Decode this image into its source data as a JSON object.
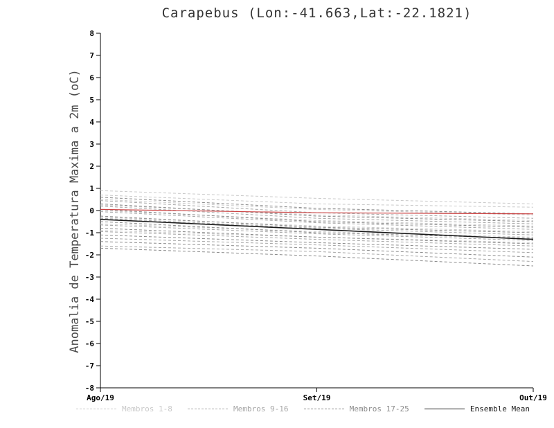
{
  "chart_data": {
    "type": "line",
    "title": "Carapebus (Lon:-41.663,Lat:-22.1821)",
    "ylabel": "Anomalia de Temperatura Maxima a 2m (oC)",
    "xlabel": "",
    "ylim": [
      -8,
      8
    ],
    "yticks": [
      -8,
      -7,
      -6,
      -5,
      -4,
      -3,
      -2,
      -1,
      0,
      1,
      2,
      3,
      4,
      5,
      6,
      7,
      8
    ],
    "x": [
      "Ago/19",
      "Set/19",
      "Out/19"
    ],
    "grid": false,
    "legend_position": "bottom",
    "axis_color": "#000000",
    "groups": [
      {
        "name": "Membros 1-8",
        "color": "#c9c9c9",
        "style": "dashed",
        "members": [
          [
            0.9,
            0.55,
            0.3
          ],
          [
            0.7,
            0.3,
            0.15
          ],
          [
            0.5,
            0.05,
            -0.2
          ],
          [
            0.25,
            -0.2,
            -0.45
          ],
          [
            0.0,
            -0.45,
            -0.7
          ],
          [
            -0.3,
            -0.7,
            -0.95
          ],
          [
            -0.6,
            -0.95,
            -1.2
          ],
          [
            -0.9,
            -1.2,
            -1.45
          ]
        ]
      },
      {
        "name": "Membros 9-16",
        "color": "#a6a6a6",
        "style": "dashed",
        "members": [
          [
            0.45,
            -0.1,
            -0.35
          ],
          [
            0.2,
            -0.35,
            -0.6
          ],
          [
            -0.05,
            -0.55,
            -0.85
          ],
          [
            -0.35,
            -0.8,
            -1.1
          ],
          [
            -0.65,
            -1.05,
            -1.35
          ],
          [
            -0.95,
            -1.3,
            -1.6
          ],
          [
            -1.25,
            -1.55,
            -1.9
          ],
          [
            -1.6,
            -1.85,
            -2.3
          ]
        ]
      },
      {
        "name": "Membros 17-25",
        "color": "#8a8a8a",
        "style": "dashed",
        "members": [
          [
            0.6,
            0.1,
            -0.15
          ],
          [
            0.3,
            -0.25,
            -0.5
          ],
          [
            0.05,
            -0.5,
            -0.75
          ],
          [
            -0.25,
            -0.75,
            -1.0
          ],
          [
            -0.5,
            -1.0,
            -1.25
          ],
          [
            -0.8,
            -1.2,
            -1.5
          ],
          [
            -1.1,
            -1.45,
            -1.75
          ],
          [
            -1.4,
            -1.7,
            -2.1
          ],
          [
            -1.7,
            -2.05,
            -2.5
          ]
        ]
      },
      {
        "name": "Ensemble Mean",
        "color": "#1a1a1a",
        "style": "solid",
        "members": [
          [
            -0.4,
            -0.85,
            -1.3
          ]
        ]
      }
    ],
    "reference_line": {
      "name": "zero-reference",
      "color": "#cc4444",
      "style": "solid",
      "values": [
        0.05,
        -0.1,
        -0.15
      ]
    }
  }
}
